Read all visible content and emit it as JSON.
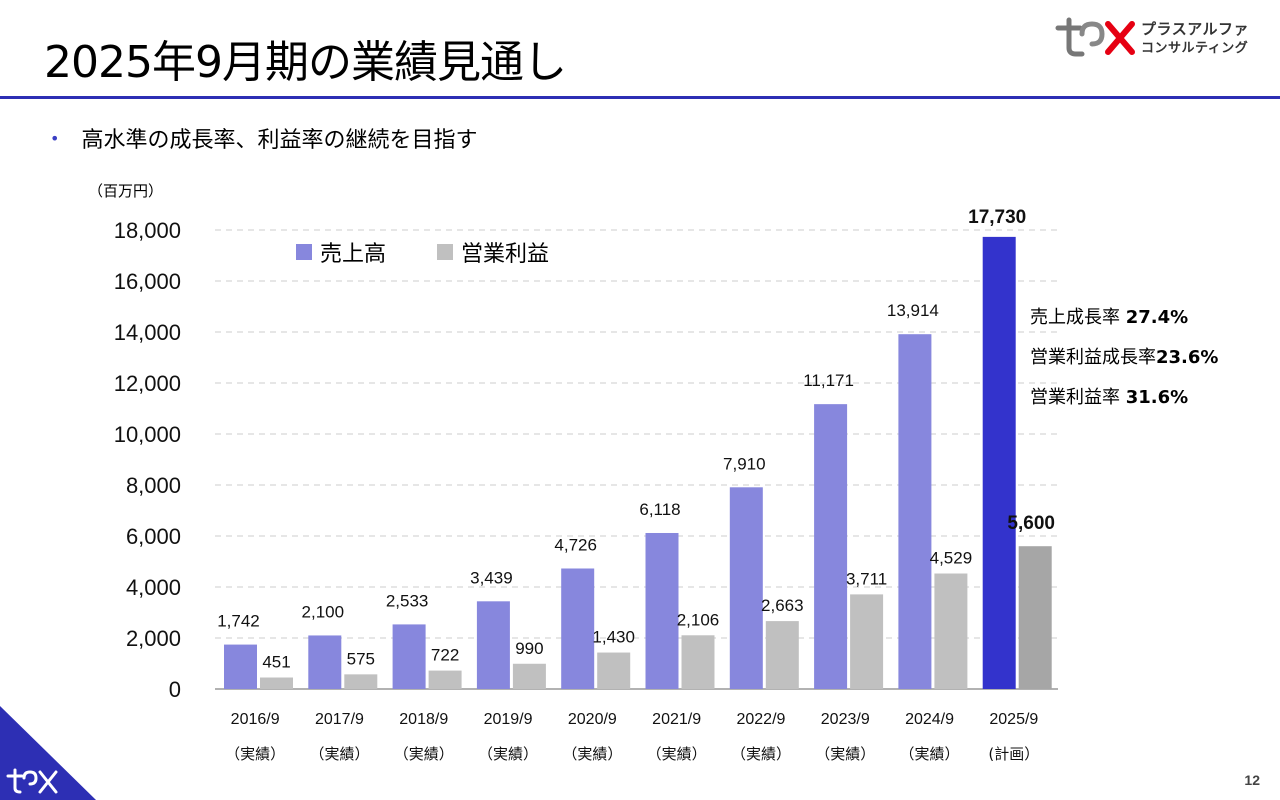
{
  "page": {
    "title": "2025年9月期の業績見通し",
    "bullet": "高水準の成長率、利益率の継続を目指す",
    "page_number": "12",
    "unit_label": "（百万円）"
  },
  "logo": {
    "line1": "プラスアルファ",
    "line2": "コンサルティング",
    "brand_color": "#e60012"
  },
  "colors": {
    "accent": "#2d2fb4",
    "revenue": "#8787dd",
    "revenue_highlight": "#3333cc",
    "profit": "#c0c0c0",
    "profit_highlight": "#a6a6a6"
  },
  "stats": [
    {
      "label": "売上成長率",
      "value": "27.4%"
    },
    {
      "label": "営業利益成長率",
      "value": "23.6%"
    },
    {
      "label": "営業利益率",
      "value": "31.6%"
    }
  ],
  "chart_data": {
    "type": "bar",
    "categories": [
      "2016/9",
      "2017/9",
      "2018/9",
      "2019/9",
      "2020/9",
      "2021/9",
      "2022/9",
      "2023/9",
      "2024/9",
      "2025/9"
    ],
    "category_sublabels": [
      "（実績）",
      "（実績）",
      "（実績）",
      "（実績）",
      "（実績）",
      "（実績）",
      "（実績）",
      "（実績）",
      "（実績）",
      "(計画）"
    ],
    "series": [
      {
        "name": "売上高",
        "values": [
          1742,
          2100,
          2533,
          3439,
          4726,
          6118,
          7910,
          11171,
          13914,
          17730
        ],
        "value_labels": [
          "1,742",
          "2,100",
          "2,533",
          "3,439",
          "4,726",
          "6,118",
          "7,910",
          "11,171",
          "13,914",
          "17,730"
        ]
      },
      {
        "name": "営業利益",
        "values": [
          451,
          575,
          722,
          990,
          1430,
          2106,
          2663,
          3711,
          4529,
          5600
        ],
        "value_labels": [
          "451",
          "575",
          "722",
          "990",
          "1,430",
          "2,106",
          "2,663",
          "3,711",
          "4,529",
          "5,600"
        ]
      }
    ],
    "ylim": [
      0,
      18000
    ],
    "yticks": [
      0,
      2000,
      4000,
      6000,
      8000,
      10000,
      12000,
      14000,
      16000,
      18000
    ],
    "ytick_labels": [
      "0",
      "2,000",
      "4,000",
      "6,000",
      "8,000",
      "10,000",
      "12,000",
      "14,000",
      "16,000",
      "18,000"
    ],
    "grid": true,
    "legend_position": "top-left",
    "highlight_last": true
  }
}
